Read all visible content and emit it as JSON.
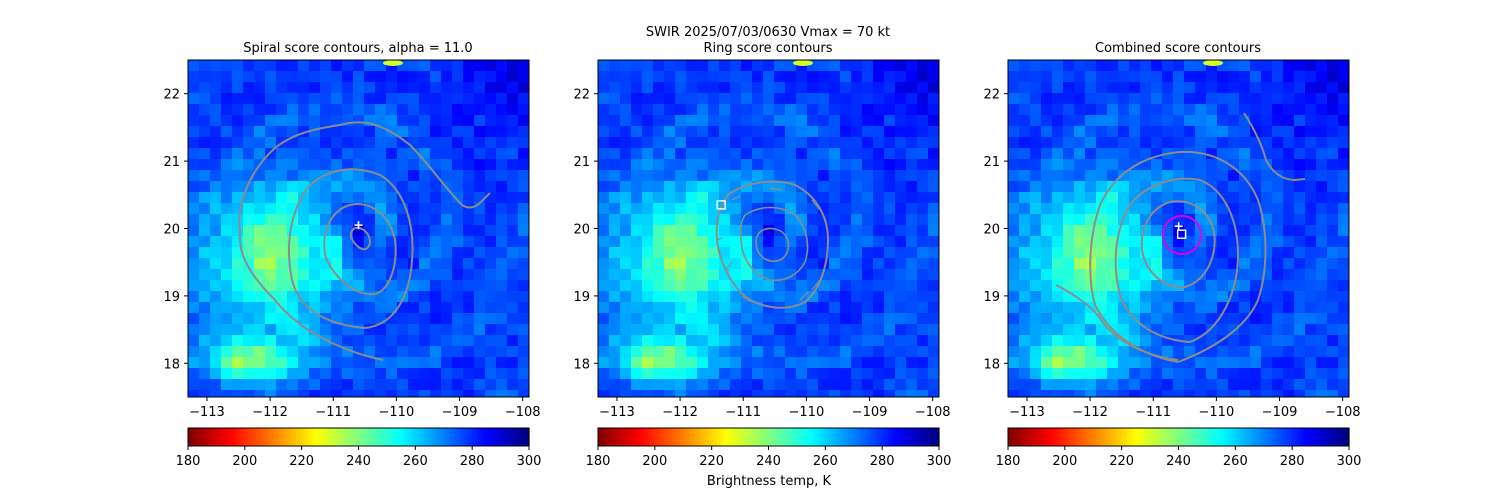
{
  "suptitle_line1": "SWIR  2025/07/03/0630    Vmax = 70 kt",
  "colorbar_label": "Brightness temp, K",
  "colors": {
    "contour": "#8c8c8c",
    "center_marker": "#ffffff",
    "ring_highlight": "#e000e0",
    "colormap": [
      "#800000",
      "#ff0000",
      "#ff8000",
      "#ffff00",
      "#80ff80",
      "#00ffff",
      "#0080ff",
      "#0000ff",
      "#000080"
    ]
  },
  "chart_data": [
    {
      "type": "heatmap",
      "title": "Spiral score contours, alpha = 11.0",
      "xlim": [
        -113.3,
        -107.9
      ],
      "ylim": [
        17.5,
        22.5
      ],
      "x_ticks": [
        "-113",
        "-112",
        "-111",
        "-110",
        "-109",
        "-108"
      ],
      "y_ticks": [
        "18",
        "19",
        "20",
        "21",
        "22"
      ],
      "colorbar": {
        "min": 180,
        "max": 300,
        "ticks": [
          "180",
          "200",
          "220",
          "240",
          "260",
          "280",
          "300"
        ]
      },
      "center_marker": {
        "lon": -110.6,
        "lat": 20.05
      }
    },
    {
      "type": "heatmap",
      "title": "Ring score contours",
      "xlim": [
        -113.3,
        -107.9
      ],
      "ylim": [
        17.5,
        22.5
      ],
      "x_ticks": [
        "-113",
        "-112",
        "-111",
        "-110",
        "-109",
        "-108"
      ],
      "y_ticks": [
        "18",
        "19",
        "20",
        "21",
        "22"
      ],
      "colorbar": {
        "min": 180,
        "max": 300,
        "ticks": [
          "180",
          "200",
          "220",
          "240",
          "260",
          "280",
          "300"
        ]
      },
      "center_marker": {
        "lon": -111.35,
        "lat": 20.35
      }
    },
    {
      "type": "heatmap",
      "title": "Combined score contours",
      "xlim": [
        -113.3,
        -107.9
      ],
      "ylim": [
        17.5,
        22.5
      ],
      "x_ticks": [
        "-113",
        "-112",
        "-111",
        "-110",
        "-109",
        "-108"
      ],
      "y_ticks": [
        "18",
        "19",
        "20",
        "21",
        "22"
      ],
      "colorbar": {
        "min": 180,
        "max": 300,
        "ticks": [
          "180",
          "200",
          "220",
          "240",
          "260",
          "280",
          "300"
        ]
      },
      "center_marker": {
        "lon": -110.55,
        "lat": 19.93
      }
    }
  ]
}
